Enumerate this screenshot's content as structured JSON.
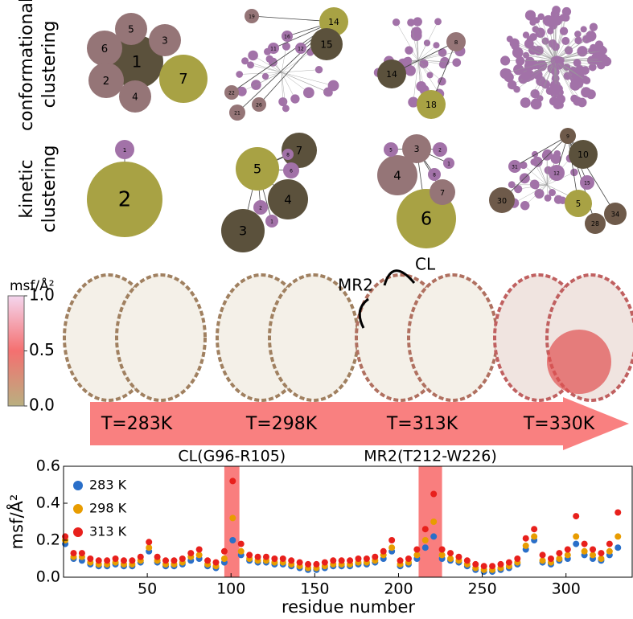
{
  "row_labels": [
    [
      "conformational",
      "clustering"
    ],
    [
      "kinetic",
      "clustering"
    ]
  ],
  "networks": {
    "conformational": [
      [
        "1",
        "5",
        "3",
        "6",
        "2",
        "4",
        "7"
      ],
      [
        "14",
        "15",
        "19",
        "22",
        "21",
        "26",
        "16",
        "11",
        "12"
      ],
      [
        "8",
        "14",
        "18"
      ],
      []
    ],
    "kinetic": [
      [
        "1",
        "2"
      ],
      [
        "5",
        "7",
        "6",
        "8",
        "4",
        "3",
        "2",
        "1"
      ],
      [
        "3",
        "4",
        "6",
        "7",
        "5",
        "2",
        "8",
        "1"
      ],
      [
        "9",
        "10",
        "30",
        "5",
        "34",
        "28",
        "12",
        "15",
        "31"
      ]
    ]
  },
  "colorbar": {
    "label": "msf/Å²",
    "ticks": [
      {
        "value": 1.0,
        "label": "1.0"
      },
      {
        "value": 0.5,
        "label": "0.5"
      },
      {
        "value": 0.0,
        "label": "0.0"
      }
    ]
  },
  "structure_annotations": [
    "MR2",
    "CL"
  ],
  "temperatures": [
    "T=283K",
    "T=298K",
    "T=313K",
    "T=330K"
  ],
  "chart_data": {
    "type": "scatter",
    "xlabel": "residue number",
    "ylabel": "msf/Å²",
    "xlim": [
      0,
      340
    ],
    "ylim": [
      0,
      0.6
    ],
    "xticks": [
      50,
      100,
      150,
      200,
      250,
      300
    ],
    "yticks": [
      {
        "value": 0,
        "label": "0.0"
      },
      {
        "value": 0.2,
        "label": "0.2"
      },
      {
        "value": 0.4,
        "label": "0.4"
      },
      {
        "value": 0.6,
        "label": "0.6"
      }
    ],
    "legend": "upper left",
    "highlights": [
      {
        "label": "CL(G96-R105)",
        "range": [
          96,
          105
        ],
        "color": "#f87070"
      },
      {
        "label": "MR2(T212-W226)",
        "range": [
          212,
          226
        ],
        "color": "#f87070"
      }
    ],
    "x": [
      1,
      6,
      11,
      16,
      21,
      26,
      31,
      36,
      41,
      46,
      51,
      56,
      61,
      66,
      71,
      76,
      81,
      86,
      91,
      96,
      101,
      106,
      111,
      116,
      121,
      126,
      131,
      136,
      141,
      146,
      151,
      156,
      161,
      166,
      171,
      176,
      181,
      186,
      191,
      196,
      201,
      206,
      211,
      216,
      221,
      226,
      231,
      236,
      241,
      246,
      251,
      256,
      261,
      266,
      271,
      276,
      281,
      286,
      291,
      296,
      301,
      306,
      311,
      316,
      321,
      326,
      331
    ],
    "series": [
      {
        "name": "283 K",
        "color": "#2a6fc9",
        "values": [
          0.18,
          0.1,
          0.09,
          0.07,
          0.06,
          0.06,
          0.07,
          0.06,
          0.06,
          0.08,
          0.14,
          0.08,
          0.06,
          0.06,
          0.07,
          0.09,
          0.1,
          0.06,
          0.05,
          0.08,
          0.2,
          0.12,
          0.09,
          0.08,
          0.08,
          0.07,
          0.07,
          0.06,
          0.05,
          0.04,
          0.04,
          0.05,
          0.06,
          0.06,
          0.06,
          0.07,
          0.07,
          0.08,
          0.1,
          0.14,
          0.06,
          0.07,
          0.1,
          0.16,
          0.22,
          0.1,
          0.09,
          0.08,
          0.06,
          0.04,
          0.03,
          0.03,
          0.04,
          0.05,
          0.07,
          0.15,
          0.2,
          0.08,
          0.07,
          0.09,
          0.1,
          0.18,
          0.12,
          0.1,
          0.09,
          0.12,
          0.16
        ]
      },
      {
        "name": "298 K",
        "color": "#e89c00",
        "values": [
          0.2,
          0.11,
          0.11,
          0.08,
          0.07,
          0.07,
          0.08,
          0.07,
          0.07,
          0.09,
          0.16,
          0.09,
          0.07,
          0.07,
          0.08,
          0.11,
          0.12,
          0.07,
          0.06,
          0.1,
          0.32,
          0.14,
          0.1,
          0.09,
          0.09,
          0.08,
          0.08,
          0.07,
          0.06,
          0.05,
          0.05,
          0.06,
          0.07,
          0.07,
          0.07,
          0.08,
          0.08,
          0.09,
          0.12,
          0.16,
          0.07,
          0.08,
          0.12,
          0.2,
          0.3,
          0.12,
          0.1,
          0.09,
          0.07,
          0.05,
          0.04,
          0.04,
          0.05,
          0.06,
          0.08,
          0.17,
          0.22,
          0.09,
          0.08,
          0.1,
          0.12,
          0.22,
          0.14,
          0.12,
          0.1,
          0.14,
          0.22
        ]
      },
      {
        "name": "313 K",
        "color": "#e8201c",
        "values": [
          0.22,
          0.13,
          0.13,
          0.1,
          0.09,
          0.09,
          0.1,
          0.09,
          0.09,
          0.11,
          0.19,
          0.11,
          0.09,
          0.09,
          0.1,
          0.13,
          0.15,
          0.09,
          0.08,
          0.14,
          0.52,
          0.18,
          0.12,
          0.11,
          0.11,
          0.1,
          0.1,
          0.09,
          0.08,
          0.07,
          0.07,
          0.08,
          0.09,
          0.09,
          0.09,
          0.1,
          0.1,
          0.11,
          0.14,
          0.2,
          0.09,
          0.1,
          0.15,
          0.26,
          0.45,
          0.15,
          0.13,
          0.11,
          0.09,
          0.07,
          0.06,
          0.06,
          0.07,
          0.08,
          0.1,
          0.21,
          0.26,
          0.12,
          0.1,
          0.13,
          0.15,
          0.33,
          0.18,
          0.15,
          0.13,
          0.18,
          0.35
        ]
      }
    ]
  }
}
